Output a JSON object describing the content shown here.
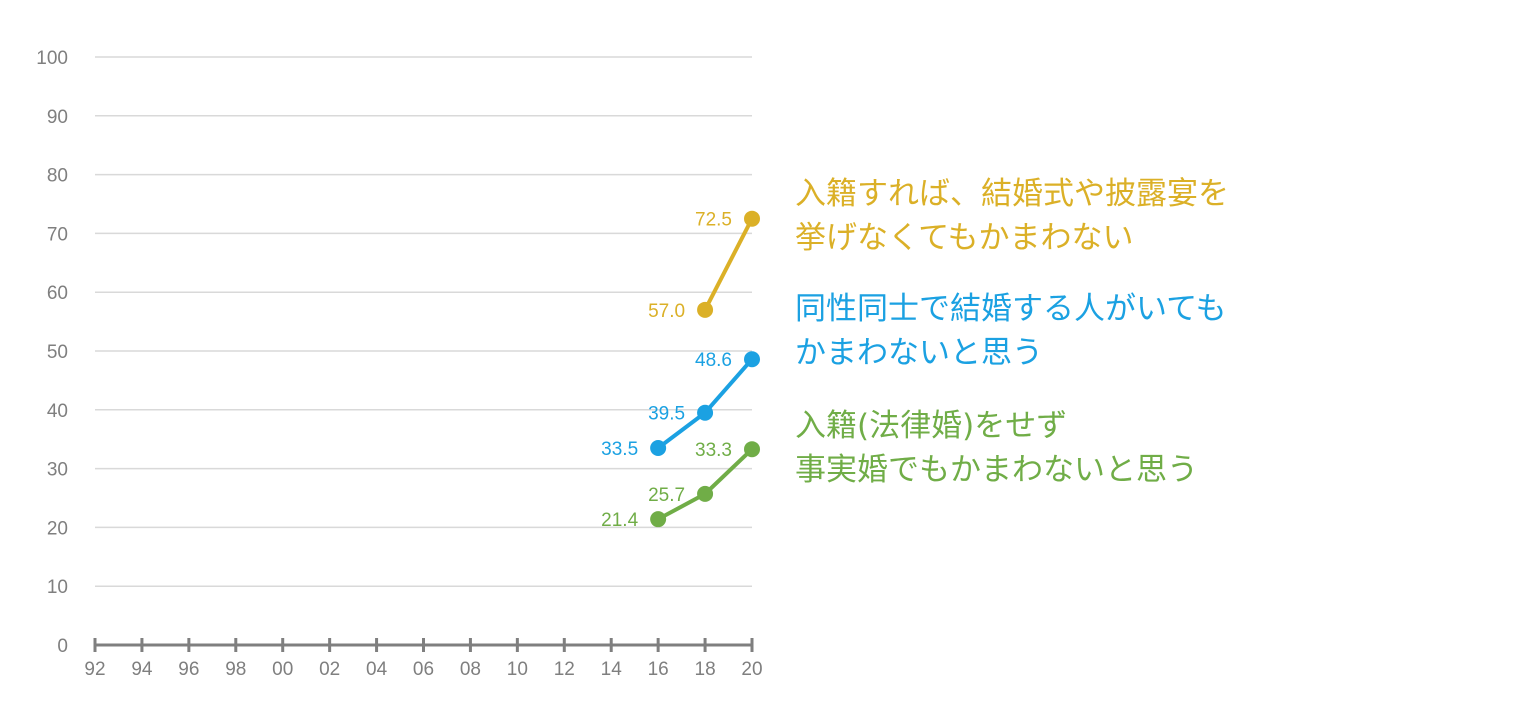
{
  "chart_data": {
    "type": "line",
    "title": "",
    "xlabel": "",
    "ylabel": "",
    "x_categories": [
      "92",
      "94",
      "96",
      "98",
      "00",
      "02",
      "04",
      "06",
      "08",
      "10",
      "12",
      "14",
      "16",
      "18",
      "20"
    ],
    "y_ticks": [
      "0",
      "10",
      "20",
      "30",
      "40",
      "50",
      "60",
      "70",
      "80",
      "90",
      "100"
    ],
    "ylim": [
      0,
      100
    ],
    "grid": true,
    "series": [
      {
        "key": "yellow",
        "color": "#dbb027",
        "points": [
          {
            "x": "18",
            "y": 57.0,
            "label": "57.0"
          },
          {
            "x": "20",
            "y": 72.5,
            "label": "72.5"
          }
        ]
      },
      {
        "key": "blue",
        "color": "#1ba1e2",
        "points": [
          {
            "x": "16",
            "y": 33.5,
            "label": "33.5"
          },
          {
            "x": "18",
            "y": 39.5,
            "label": "39.5"
          },
          {
            "x": "20",
            "y": 48.6,
            "label": "48.6"
          }
        ]
      },
      {
        "key": "green",
        "color": "#70ad47",
        "points": [
          {
            "x": "16",
            "y": 21.4,
            "label": "21.4"
          },
          {
            "x": "18",
            "y": 25.7,
            "label": "25.7"
          },
          {
            "x": "20",
            "y": 33.3,
            "label": "33.3"
          }
        ]
      }
    ]
  },
  "legend": {
    "yellow": {
      "line1": "入籍すれば、結婚式や披露宴を",
      "line2": "挙げなくてもかまわない",
      "color": "#dbb027"
    },
    "blue": {
      "line1": "同性同士で結婚する人がいても",
      "line2": "かまわないと思う",
      "color": "#1ba1e2"
    },
    "green": {
      "line1": "入籍(法律婚)をせず",
      "line2": "事実婚でもかまわないと思う",
      "color": "#70ad47"
    }
  }
}
